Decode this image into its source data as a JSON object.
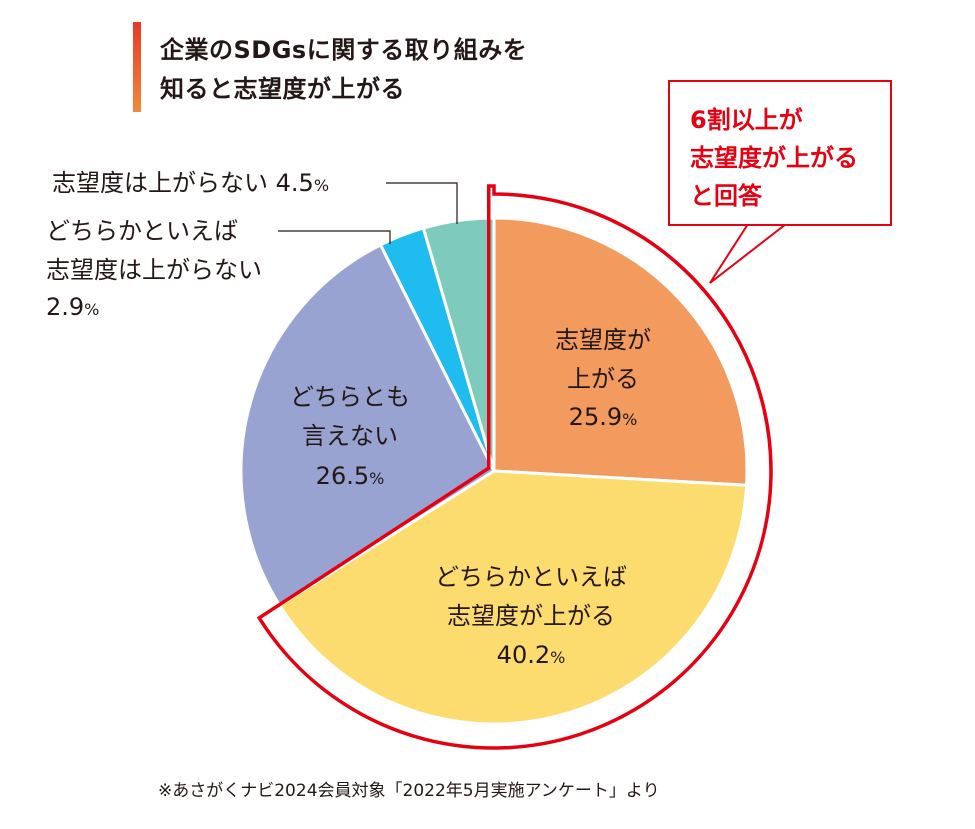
{
  "title": {
    "line1": "企業のSDGsに関する取り組みを",
    "line2": "知ると志望度が上がる"
  },
  "callout": {
    "line1": "6割以上が",
    "line2": "志望度が上がる",
    "line3": "と回答"
  },
  "chart_data": {
    "type": "pie",
    "title": "企業のSDGsに関する取り組みを知ると志望度が上がる",
    "unit": "%",
    "start_angle_deg": 0,
    "direction": "clockwise",
    "slices": [
      {
        "label_lines": [
          "志望度が",
          "上がる"
        ],
        "value": 25.9,
        "value_text": "25.9",
        "color": "#f39a5e"
      },
      {
        "label_lines": [
          "どちらかといえば",
          "志望度が上がる"
        ],
        "value": 40.2,
        "value_text": "40.2",
        "color": "#fddc6f"
      },
      {
        "label_lines": [
          "どちらとも",
          "言えない"
        ],
        "value": 26.5,
        "value_text": "26.5",
        "color": "#98a3d2"
      },
      {
        "label_lines": [
          "どちらかといえば",
          "志望度は上がらない"
        ],
        "value": 2.9,
        "value_text": "2.9",
        "color": "#1fbcef"
      },
      {
        "label_lines": [
          "志望度は上がらない"
        ],
        "value": 4.5,
        "value_text": "4.5",
        "color": "#7ecbbd"
      }
    ],
    "highlight": {
      "slices": [
        0,
        1
      ],
      "color": "#e50012"
    }
  },
  "footnote": "※あさがくナビ2024会員対象「2022年5月実施アンケート」より"
}
